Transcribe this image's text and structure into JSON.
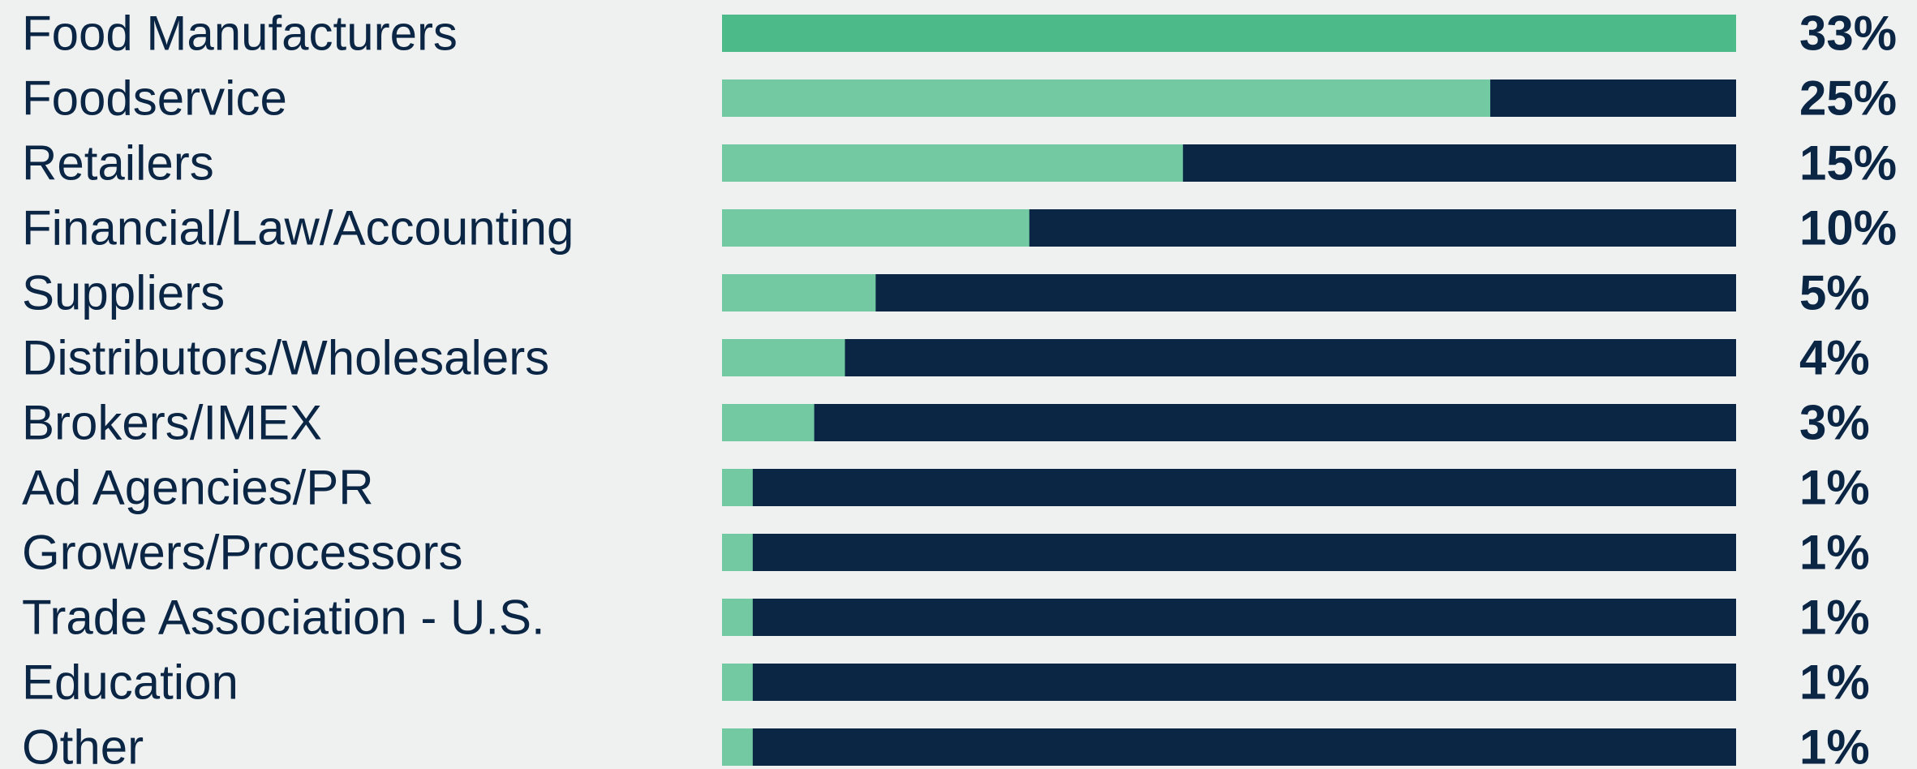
{
  "chart_data": {
    "type": "bar",
    "orientation": "horizontal",
    "title": "",
    "xlabel": "",
    "ylabel": "",
    "categories": [
      "Food Manufacturers",
      "Foodservice",
      "Retailers",
      "Financial/Law/Accounting",
      "Suppliers",
      "Distributors/Wholesalers",
      "Brokers/IMEX",
      "Ad Agencies/PR",
      "Growers/Processors",
      "Trade Association - U.S.",
      "Education",
      "Other"
    ],
    "values": [
      33,
      25,
      15,
      10,
      5,
      4,
      3,
      1,
      1,
      1,
      1,
      1
    ],
    "value_labels": [
      "33%",
      "25%",
      "15%",
      "10%",
      "5%",
      "4%",
      "3%",
      "1%",
      "1%",
      "1%",
      "1%",
      "1%"
    ],
    "xlim": [
      0,
      33
    ],
    "grid": false,
    "legend": "none",
    "colors": {
      "background": "#eff1f0",
      "bar_fill_top": "#4dba8a",
      "bar_fill": "#72c9a2",
      "bar_track": "#0b2545",
      "text": "#0b2545"
    }
  }
}
